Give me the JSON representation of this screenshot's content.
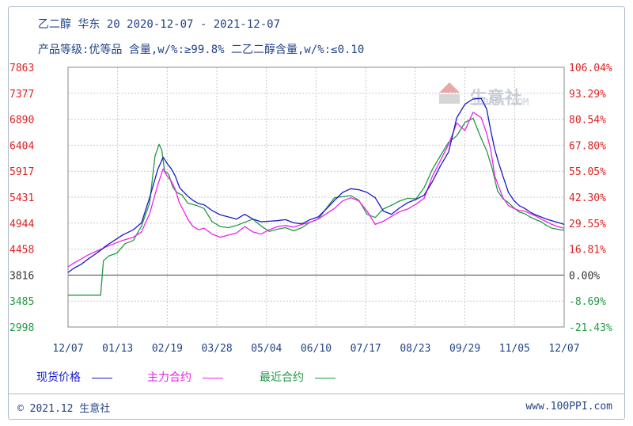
{
  "header": {
    "title": "乙二醇 华东 20 2020-12-07 - 2021-12-07",
    "subtitle": "产品等级:优等品 含量,w/%:≥99.8% 二乙二醇含量,w/%:≤0.10"
  },
  "watermark": {
    "name": "生意社",
    "site": "100PPI.COM"
  },
  "footer": {
    "left": "© 2021.12 生意社",
    "right": "www.100PPI.com"
  },
  "colors": {
    "spot": "#1a1ac8",
    "main": "#ee22ee",
    "near": "#229944",
    "grid": "#c8c8c8",
    "left_axis_top": "#dd2222",
    "right_axis": "#dd2222",
    "right_axis_neg": "#229944",
    "left_axis_bottom": "#229944",
    "zero": "#444444"
  },
  "chart_data": {
    "type": "line",
    "title": "乙二醇 华东 20 2020-12-07 - 2021-12-07",
    "x_ticks": [
      "12/07",
      "01/13",
      "02/19",
      "03/28",
      "05/04",
      "06/10",
      "07/17",
      "08/23",
      "09/29",
      "11/05",
      "12/07"
    ],
    "x_range": [
      0,
      365
    ],
    "y_left_ticks": [
      "7863",
      "7377",
      "6890",
      "6404",
      "5917",
      "5431",
      "4944",
      "4458",
      "3816",
      "3485",
      "2998"
    ],
    "y_left_values": [
      7863,
      7377,
      6890,
      6404,
      5917,
      5431,
      4944,
      4458,
      3816,
      3485,
      2998
    ],
    "y_right_ticks": [
      "106.04%",
      "93.29%",
      "80.54%",
      "67.80%",
      "55.05%",
      "42.30%",
      "29.55%",
      "16.81%",
      "0.00%",
      "-8.69%",
      "-21.43%"
    ],
    "ylim": [
      2998,
      7863
    ],
    "baseline": 3816,
    "legend": [
      {
        "name": "现货价格",
        "color_key": "spot"
      },
      {
        "name": "主力合约",
        "color_key": "main"
      },
      {
        "name": "最近合约",
        "color_key": "near"
      }
    ],
    "series": [
      {
        "name": "现货价格",
        "x": [
          0,
          4,
          10,
          15,
          22,
          28,
          34,
          40,
          48,
          54,
          60,
          66,
          70,
          73,
          76,
          79,
          82,
          85,
          88,
          92,
          96,
          100,
          106,
          112,
          118,
          124,
          130,
          136,
          142,
          148,
          154,
          160,
          166,
          172,
          178,
          184,
          190,
          196,
          202,
          208,
          214,
          220,
          226,
          232,
          238,
          244,
          250,
          256,
          262,
          268,
          274,
          280,
          286,
          292,
          298,
          304,
          308,
          311,
          314,
          317,
          320,
          324,
          328,
          332,
          336,
          340,
          344,
          348,
          352,
          356,
          360,
          365
        ],
        "values": [
          3880,
          3980,
          4090,
          4220,
          4380,
          4520,
          4620,
          4720,
          4820,
          4950,
          5420,
          5950,
          6180,
          6060,
          5960,
          5820,
          5610,
          5530,
          5450,
          5370,
          5310,
          5290,
          5180,
          5100,
          5060,
          5020,
          5110,
          5020,
          4970,
          4980,
          4990,
          5010,
          4950,
          4930,
          5010,
          5060,
          5210,
          5370,
          5520,
          5590,
          5570,
          5520,
          5420,
          5170,
          5110,
          5230,
          5330,
          5390,
          5470,
          5720,
          6020,
          6280,
          6920,
          7170,
          7270,
          7280,
          7080,
          6680,
          6320,
          6060,
          5820,
          5520,
          5370,
          5270,
          5220,
          5150,
          5100,
          5060,
          5020,
          4990,
          4960,
          4920
        ]
      },
      {
        "name": "主力合约",
        "x": [
          0,
          4,
          10,
          15,
          22,
          28,
          34,
          40,
          48,
          54,
          60,
          66,
          70,
          73,
          76,
          79,
          82,
          85,
          88,
          92,
          96,
          100,
          106,
          112,
          118,
          124,
          130,
          136,
          142,
          148,
          154,
          160,
          166,
          172,
          178,
          184,
          190,
          196,
          202,
          208,
          214,
          220,
          226,
          232,
          238,
          244,
          250,
          256,
          262,
          268,
          274,
          280,
          286,
          292,
          298,
          304,
          308,
          311,
          314,
          317,
          320,
          324,
          328,
          332,
          336,
          340,
          344,
          348,
          352,
          356,
          360,
          365
        ],
        "values": [
          4020,
          4110,
          4220,
          4320,
          4420,
          4500,
          4560,
          4620,
          4680,
          4780,
          5120,
          5660,
          5960,
          5820,
          5730,
          5570,
          5320,
          5180,
          5020,
          4880,
          4820,
          4850,
          4740,
          4680,
          4720,
          4760,
          4880,
          4780,
          4740,
          4820,
          4880,
          4900,
          4870,
          4920,
          4960,
          5020,
          5120,
          5220,
          5360,
          5420,
          5360,
          5170,
          4920,
          4980,
          5070,
          5160,
          5210,
          5300,
          5410,
          5820,
          6120,
          6420,
          6820,
          6680,
          7020,
          6920,
          6620,
          6320,
          5820,
          5620,
          5420,
          5270,
          5220,
          5180,
          5170,
          5120,
          5080,
          5020,
          4970,
          4920,
          4880,
          4850
        ]
      },
      {
        "name": "最近合约",
        "x": [
          0,
          6,
          12,
          18,
          24,
          26,
          30,
          36,
          42,
          48,
          54,
          60,
          64,
          67,
          69,
          71,
          74,
          77,
          80,
          84,
          88,
          94,
          100,
          106,
          112,
          118,
          124,
          130,
          136,
          142,
          148,
          154,
          160,
          166,
          172,
          178,
          184,
          190,
          196,
          202,
          208,
          214,
          220,
          226,
          232,
          238,
          244,
          250,
          256,
          262,
          268,
          274,
          280,
          286,
          292,
          298,
          304,
          308,
          312,
          316,
          320,
          324,
          328,
          332,
          336,
          340,
          344,
          348,
          352,
          356,
          360,
          365
        ],
        "values": [
          3560,
          3560,
          3560,
          3560,
          3560,
          4170,
          4290,
          4360,
          4560,
          4620,
          4890,
          5320,
          6200,
          6420,
          6310,
          5920,
          5860,
          5620,
          5520,
          5470,
          5320,
          5280,
          5220,
          4970,
          4880,
          4860,
          4900,
          4960,
          5020,
          4890,
          4790,
          4830,
          4860,
          4800,
          4860,
          4960,
          5020,
          5220,
          5420,
          5440,
          5460,
          5370,
          5110,
          5050,
          5210,
          5280,
          5360,
          5410,
          5400,
          5610,
          5950,
          6210,
          6460,
          6580,
          6830,
          6910,
          6530,
          6300,
          5970,
          5550,
          5400,
          5330,
          5230,
          5150,
          5120,
          5060,
          5010,
          4970,
          4900,
          4850,
          4830,
          4810
        ]
      }
    ]
  }
}
